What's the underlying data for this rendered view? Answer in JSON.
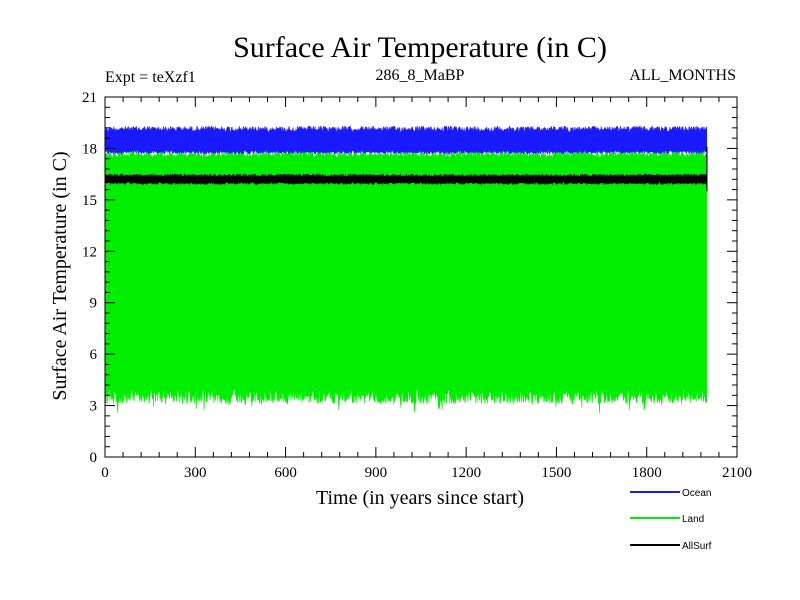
{
  "chart_data": {
    "type": "line",
    "title": "Surface Air Temperature (in C)",
    "header_left": "Expt = teXzf1",
    "header_center": "286_8_MaBP",
    "header_right": "ALL_MONTHS",
    "xlabel": "Time (in years since start)",
    "ylabel": "Surface Air Temperature (in C)",
    "xlim": [
      0,
      2100
    ],
    "ylim": [
      0,
      21
    ],
    "xticks": [
      0,
      300,
      600,
      900,
      1200,
      1500,
      1800,
      2100
    ],
    "yticks": [
      0,
      3,
      6,
      9,
      12,
      15,
      18,
      21
    ],
    "x_data_range": [
      0,
      2000
    ],
    "series": [
      {
        "name": "Ocean",
        "color": "#1a1aff",
        "approx_min": 17.5,
        "approx_max": 19.3,
        "approx_mean": 18.3
      },
      {
        "name": "Land",
        "color": "#00ee00",
        "approx_min": 2.5,
        "approx_max": 17.8,
        "approx_mean": 10.2
      },
      {
        "name": "AllSurf",
        "color": "#000000",
        "approx_min": 15.5,
        "approx_max": 16.8,
        "approx_mean": 16.2
      }
    ]
  },
  "legend": {
    "items": [
      {
        "label": "Ocean",
        "color": "#1a1aff"
      },
      {
        "label": "Land",
        "color": "#00ee00"
      },
      {
        "label": "AllSurf",
        "color": "#000000"
      }
    ]
  }
}
